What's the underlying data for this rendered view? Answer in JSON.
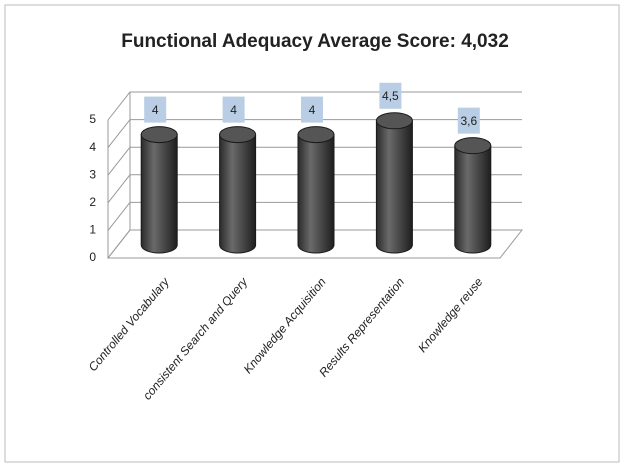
{
  "chart_data": {
    "type": "bar3d",
    "title": "Functional Adequacy Average Score: 4,032",
    "categories": [
      "Controlled Vocabulary",
      "consistent Search and Query",
      "Knowledge Acquisition",
      "Results Representation",
      "Knowledge reuse"
    ],
    "values": [
      4,
      4,
      4,
      4.5,
      3.6
    ],
    "value_labels": [
      "4",
      "4",
      "4",
      "4,5",
      "3,6"
    ],
    "color": "#4a4a4a",
    "ylim": [
      0,
      5
    ],
    "yticks": [
      0,
      1,
      2,
      3,
      4,
      5
    ],
    "grid": true
  }
}
